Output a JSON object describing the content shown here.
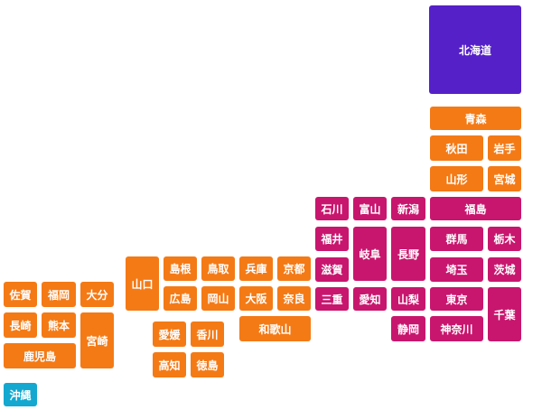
{
  "groups": [
    {
      "color": "#5520c8",
      "prefectures": [
        "北海道"
      ]
    },
    {
      "color": "#f47a16",
      "prefectures": [
        "青森",
        "秋田",
        "岩手",
        "山形",
        "宮城"
      ]
    },
    {
      "color": "#c8166e",
      "prefectures": [
        "福島",
        "石川",
        "富山",
        "新潟",
        "福井",
        "岐阜",
        "長野",
        "群馬",
        "栃木",
        "滋賀",
        "埼玉",
        "茨城",
        "三重",
        "愛知",
        "山梨",
        "東京",
        "千葉",
        "静岡",
        "神奈川"
      ]
    },
    {
      "color": "#f47a16",
      "prefectures": [
        "京都",
        "兵庫",
        "鳥取",
        "島根",
        "山口",
        "広島",
        "岡山",
        "大阪",
        "奈良",
        "和歌山",
        "愛媛",
        "香川",
        "高知",
        "徳島",
        "佐賀",
        "福岡",
        "大分",
        "長崎",
        "熊本",
        "宮崎",
        "鹿児島"
      ]
    },
    {
      "color": "#14a8d0",
      "prefectures": [
        "沖縄"
      ]
    }
  ]
}
